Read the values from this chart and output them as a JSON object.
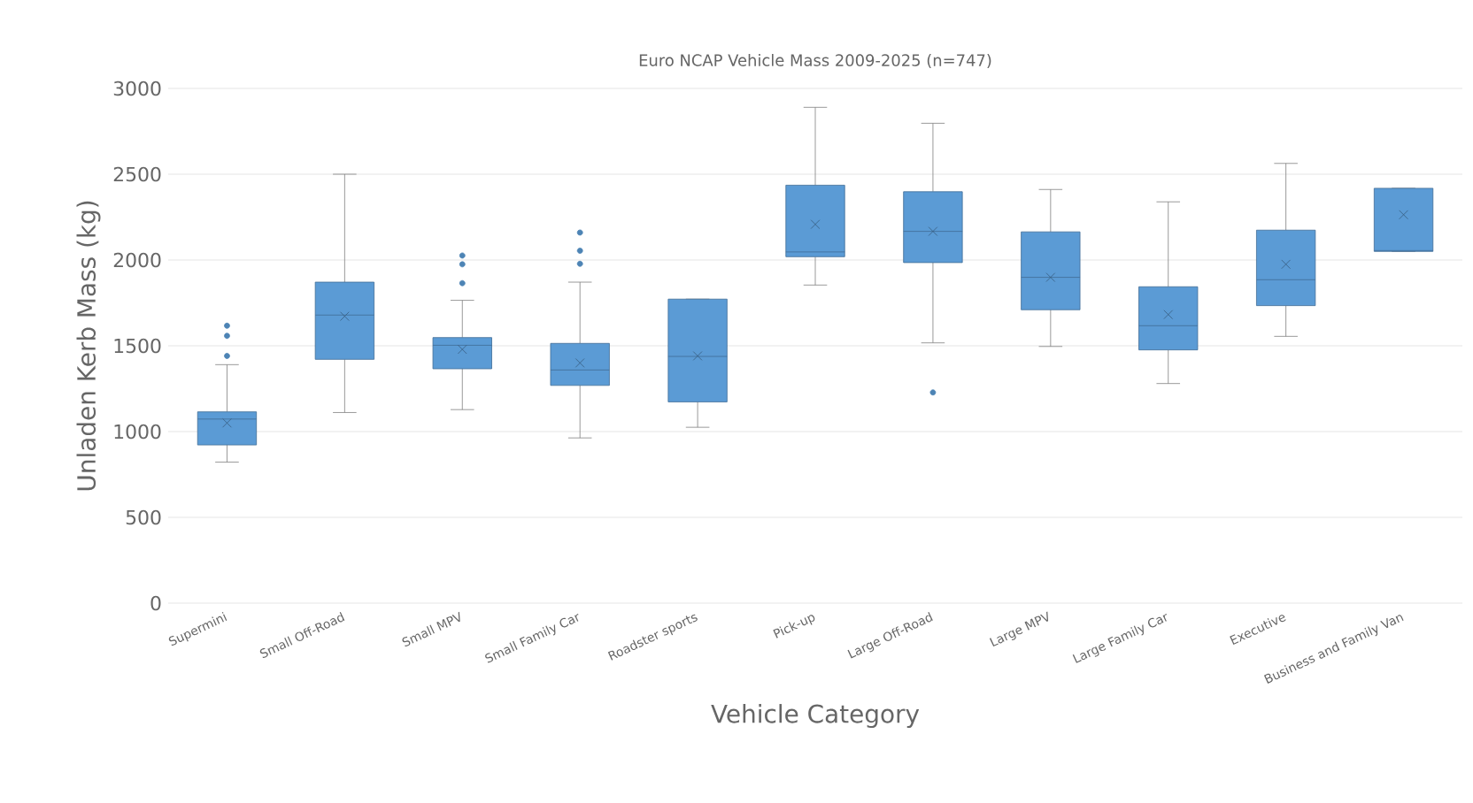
{
  "chart_data": {
    "type": "box",
    "title": "Euro NCAP Vehicle Mass 2009-2025 (n=747)",
    "xlabel": "Vehicle Category",
    "ylabel": "Unladen Kerb Mass (kg)",
    "categories": [
      "Supermini",
      "Small Off-Road",
      "Small MPV",
      "Small Family Car",
      "Roadster sports",
      "Pick-up",
      "Large Off-Road",
      "Large MPV",
      "Large Family Car",
      "Executive",
      "Business and Family Van"
    ],
    "color": "#5b9bd5",
    "ylim": [
      0,
      3000
    ],
    "yticks": [
      0,
      500,
      1000,
      1500,
      2000,
      2500,
      3000
    ],
    "grid": "y",
    "boxes": [
      {
        "low": 822,
        "q1": 922,
        "median": 1073,
        "q3": 1115,
        "high": 1390,
        "mean": 1050,
        "outliers": [
          1617,
          1558,
          1441
        ]
      },
      {
        "low": 1111,
        "q1": 1421,
        "median": 1679,
        "q3": 1871,
        "high": 2500,
        "mean": 1672
      },
      {
        "low": 1128,
        "q1": 1366,
        "median": 1503,
        "q3": 1548,
        "high": 1765,
        "mean": 1479,
        "outliers": [
          2026,
          1975,
          1865
        ]
      },
      {
        "low": 963,
        "q1": 1269,
        "median": 1359,
        "q3": 1514,
        "high": 1871,
        "mean": 1400,
        "outliers": [
          2160,
          2054,
          1978
        ]
      },
      {
        "low": 1025,
        "q1": 1173,
        "median": 1438,
        "q3": 1772,
        "high": 1772,
        "mean": 1441
      },
      {
        "low": 1854,
        "q1": 2019,
        "median": 2047,
        "q3": 2436,
        "high": 2890,
        "mean": 2208
      },
      {
        "low": 1517,
        "q1": 1985,
        "median": 2167,
        "q3": 2398,
        "high": 2797,
        "mean": 2167,
        "outliers": [
          1228
        ]
      },
      {
        "low": 1496,
        "q1": 1710,
        "median": 1899,
        "q3": 2164,
        "high": 2411,
        "mean": 1899
      },
      {
        "low": 1280,
        "q1": 1476,
        "median": 1617,
        "q3": 1844,
        "high": 2339,
        "mean": 1682
      },
      {
        "low": 1555,
        "q1": 1734,
        "median": 1885,
        "q3": 2174,
        "high": 2563,
        "mean": 1975
      },
      {
        "low": 2050,
        "q1": 2050,
        "median": 2055,
        "q3": 2418,
        "high": 2418,
        "mean": 2264
      }
    ]
  }
}
